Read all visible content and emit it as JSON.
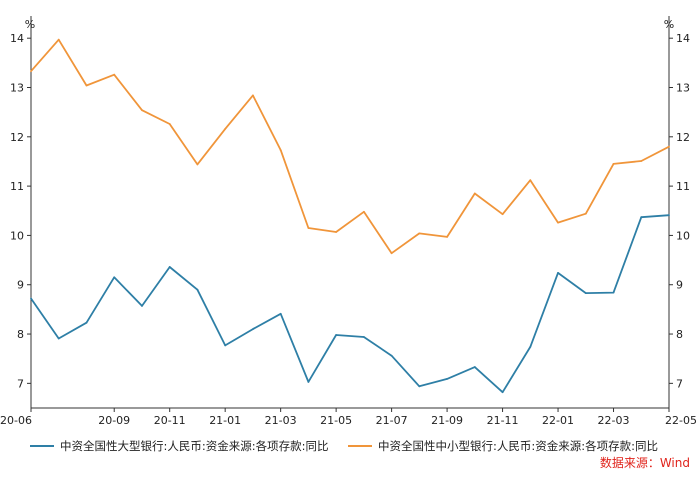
{
  "chart_data": {
    "type": "line",
    "x": [
      "20-06",
      "20-07",
      "20-08",
      "20-09",
      "20-10",
      "20-11",
      "20-12",
      "21-01",
      "21-02",
      "21-03",
      "21-04",
      "21-05",
      "21-06",
      "21-07",
      "21-08",
      "21-09",
      "21-10",
      "21-11",
      "21-12",
      "22-01",
      "22-02",
      "22-03",
      "22-04",
      "22-05"
    ],
    "x_tick_labels": [
      "20-06",
      "20-09",
      "20-11",
      "21-01",
      "21-03",
      "21-05",
      "21-07",
      "21-09",
      "21-11",
      "22-01",
      "22-03",
      "22-05"
    ],
    "series": [
      {
        "name": "中资全国性大型银行:人民币:资金来源:各项存款:同比",
        "color": "#2e7fa6",
        "axis": "left",
        "values": [
          8.72,
          7.91,
          8.23,
          9.15,
          8.57,
          9.36,
          8.9,
          7.77,
          8.1,
          8.41,
          7.03,
          7.98,
          7.94,
          7.56,
          6.94,
          7.09,
          7.33,
          6.82,
          7.74,
          9.24,
          8.83,
          8.84,
          10.37,
          10.41
        ]
      },
      {
        "name": "中资全国性中小型银行:人民币:资金来源:各项存款:同比",
        "color": "#f0953a",
        "axis": "right",
        "values": [
          13.33,
          13.97,
          13.04,
          13.26,
          12.54,
          12.26,
          11.44,
          12.16,
          12.84,
          11.73,
          10.15,
          10.07,
          10.48,
          9.64,
          10.04,
          9.97,
          10.85,
          10.43,
          11.12,
          10.26,
          10.44,
          11.45,
          11.51,
          11.8
        ]
      }
    ],
    "y_ticks": [
      7,
      8,
      9,
      10,
      11,
      12,
      13,
      14
    ],
    "ylim": [
      6.5,
      14.45
    ],
    "ylabel_left": "%",
    "ylabel_right": "%",
    "grid": false,
    "legend_position": "bottom"
  },
  "source_note": "数据来源：Wind"
}
